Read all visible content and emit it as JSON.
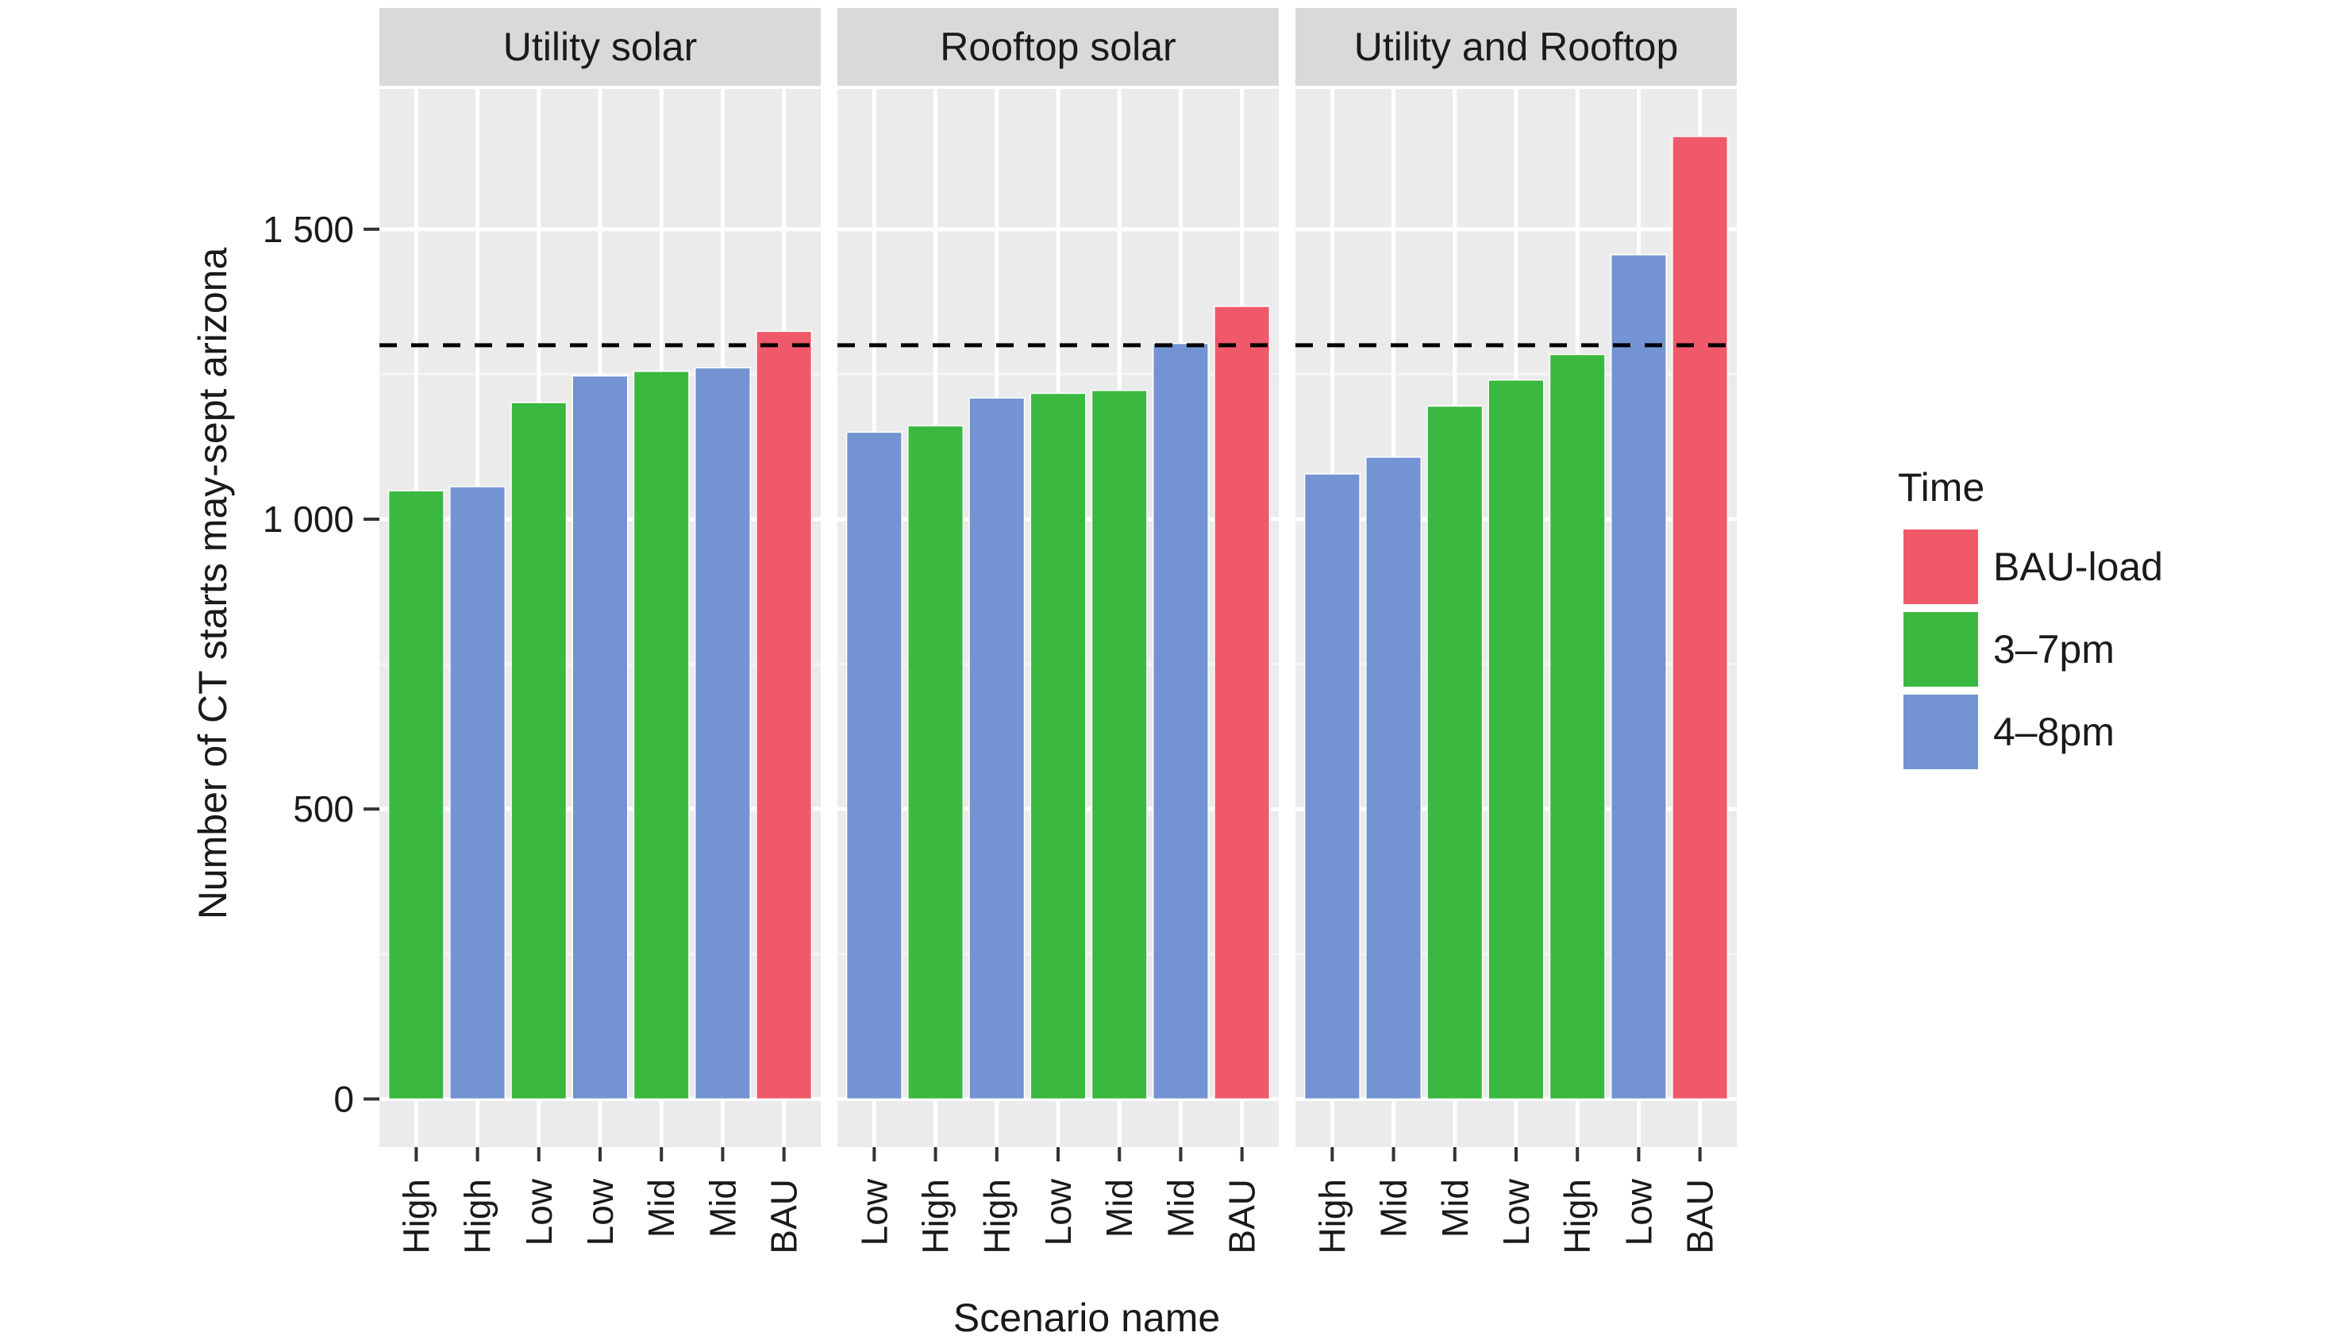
{
  "chart_data": {
    "type": "bar",
    "facet_variable": "Solar type",
    "xlabel": "Scenario name",
    "ylabel": "Number of CT starts may-sept arizona",
    "ylim": [
      -83,
      1742
    ],
    "y_ticks": [
      0,
      500,
      1000,
      1500
    ],
    "y_tick_labels": [
      "0",
      "500",
      "1 000",
      "1 500"
    ],
    "grid": true,
    "reference_line": {
      "value": 1300,
      "style": "dashed",
      "color": "#000000"
    },
    "legend": {
      "title": "Time",
      "placement": "right",
      "entries": [
        {
          "label": "BAU-load",
          "color": "#f0596a"
        },
        {
          "label": "3–7pm",
          "color": "#3bb83f"
        },
        {
          "label": "4–8pm",
          "color": "#7393d2"
        }
      ]
    },
    "panels": [
      {
        "title": "Utility solar",
        "categories": [
          "High",
          "High",
          "Low",
          "Low",
          "Mid",
          "Mid",
          "BAU"
        ],
        "values": [
          1049,
          1056,
          1201,
          1247,
          1255,
          1261,
          1324
        ],
        "groups": [
          "3–7pm",
          "4–8pm",
          "3–7pm",
          "4–8pm",
          "3–7pm",
          "4–8pm",
          "BAU-load"
        ]
      },
      {
        "title": "Rooftop solar",
        "categories": [
          "Low",
          "High",
          "High",
          "Low",
          "Mid",
          "Mid",
          "BAU"
        ],
        "values": [
          1150,
          1161,
          1209,
          1217,
          1222,
          1303,
          1367
        ],
        "groups": [
          "4–8pm",
          "3–7pm",
          "4–8pm",
          "3–7pm",
          "3–7pm",
          "4–8pm",
          "BAU-load"
        ]
      },
      {
        "title": "Utility and Rooftop",
        "categories": [
          "High",
          "Mid",
          "Mid",
          "Low",
          "High",
          "Low",
          "BAU"
        ],
        "values": [
          1078,
          1107,
          1195,
          1240,
          1284,
          1456,
          1660
        ],
        "groups": [
          "4–8pm",
          "4–8pm",
          "3–7pm",
          "3–7pm",
          "3–7pm",
          "4–8pm",
          "BAU-load"
        ]
      }
    ]
  }
}
